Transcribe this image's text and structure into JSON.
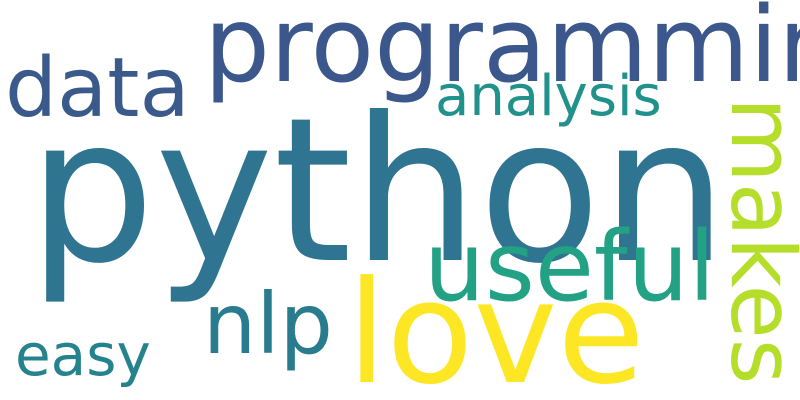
{
  "words": [
    {
      "text": "python",
      "color": "#2f7490"
    },
    {
      "text": "programming",
      "color": "#3b578c"
    },
    {
      "text": "data",
      "color": "#3a5a8b"
    },
    {
      "text": "analysis",
      "color": "#21918c"
    },
    {
      "text": "makes",
      "color": "#b5de2b"
    },
    {
      "text": "useful",
      "color": "#22a185"
    },
    {
      "text": "nlp",
      "color": "#287c8e"
    },
    {
      "text": "love",
      "color": "#fde725"
    },
    {
      "text": "easy",
      "color": "#25838e"
    }
  ]
}
